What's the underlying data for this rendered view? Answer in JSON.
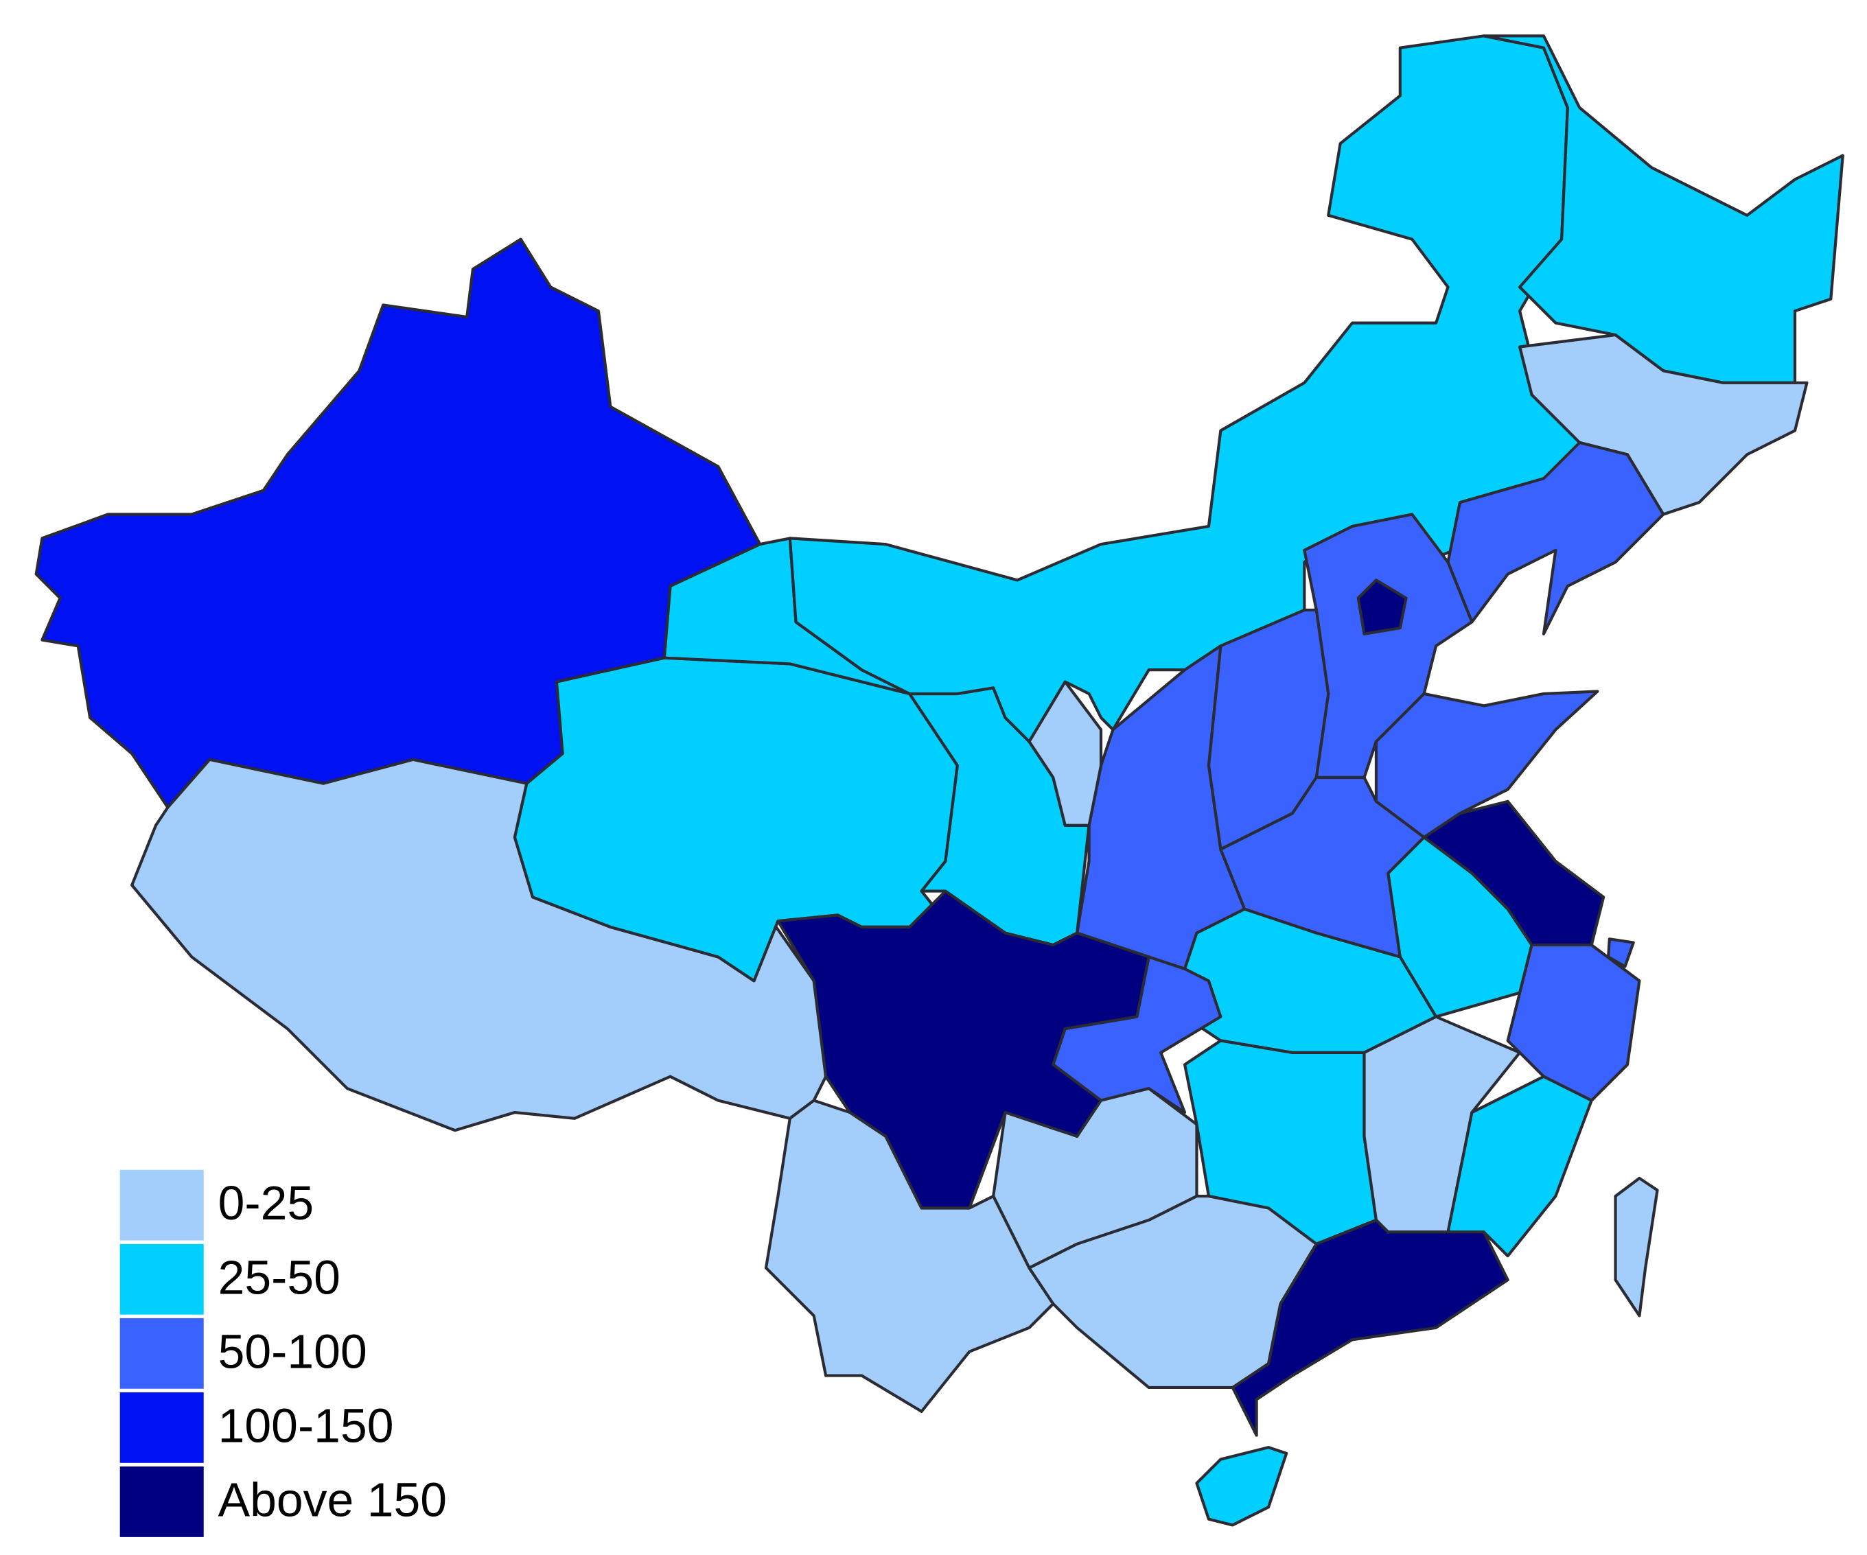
{
  "legend": {
    "items": [
      {
        "label": "0-25",
        "color": "#a3cdfb"
      },
      {
        "label": "25-50",
        "color": "#00cfff"
      },
      {
        "label": "50-100",
        "color": "#3a62ff"
      },
      {
        "label": "100-150",
        "color": "#0012f2"
      },
      {
        "label": "Above 150",
        "color": "#000080"
      }
    ]
  }
}
